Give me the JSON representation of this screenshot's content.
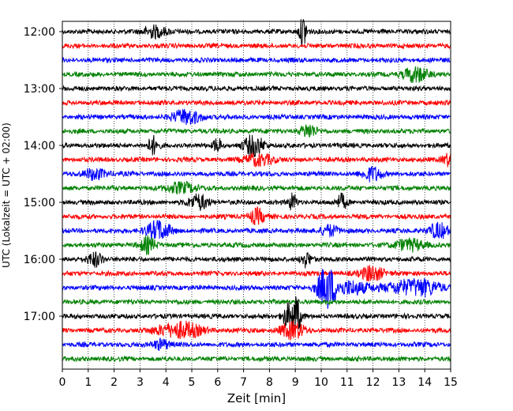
{
  "chart_data": {
    "type": "line",
    "title": "",
    "xlabel": "Zeit  [min]",
    "ylabel": "UTC (Lokalzeit = UTC + 02:00)",
    "xlim": [
      0,
      15
    ],
    "x_ticks": [
      "0",
      "1",
      "2",
      "3",
      "4",
      "5",
      "6",
      "7",
      "8",
      "9",
      "10",
      "11",
      "12",
      "13",
      "14",
      "15"
    ],
    "y_ticks": [
      "12:00",
      "13:00",
      "14:00",
      "15:00",
      "16:00",
      "17:00"
    ],
    "grid": {
      "vertical": "dotted",
      "horizontal": false
    },
    "trace_interval_min": 15,
    "start_time": "12:00",
    "color_cycle": [
      "#000000",
      "#ff0000",
      "#0000ff",
      "#008000"
    ],
    "series": [
      {
        "start": "12:00",
        "color": "#000000",
        "events": [
          {
            "t": 3.6,
            "amp": 1.3,
            "dur": 0.4
          },
          {
            "t": 9.3,
            "amp": 3.0,
            "dur": 0.15
          }
        ]
      },
      {
        "start": "12:15",
        "color": "#ff0000",
        "events": []
      },
      {
        "start": "12:30",
        "color": "#0000ff",
        "events": []
      },
      {
        "start": "12:45",
        "color": "#008000",
        "events": [
          {
            "t": 13.6,
            "amp": 1.3,
            "dur": 0.5
          }
        ]
      },
      {
        "start": "13:00",
        "color": "#000000",
        "events": []
      },
      {
        "start": "13:15",
        "color": "#ff0000",
        "events": []
      },
      {
        "start": "13:30",
        "color": "#0000ff",
        "events": [
          {
            "t": 4.8,
            "amp": 1.2,
            "dur": 0.6
          }
        ]
      },
      {
        "start": "13:45",
        "color": "#008000",
        "events": [
          {
            "t": 9.5,
            "amp": 1.2,
            "dur": 0.3
          }
        ]
      },
      {
        "start": "14:00",
        "color": "#000000",
        "events": [
          {
            "t": 3.5,
            "amp": 1.4,
            "dur": 0.2
          },
          {
            "t": 6.0,
            "amp": 1.4,
            "dur": 0.15
          },
          {
            "t": 7.4,
            "amp": 1.6,
            "dur": 0.4
          }
        ]
      },
      {
        "start": "14:15",
        "color": "#ff0000",
        "events": [
          {
            "t": 7.6,
            "amp": 1.3,
            "dur": 0.5
          },
          {
            "t": 14.9,
            "amp": 1.3,
            "dur": 0.2
          }
        ]
      },
      {
        "start": "14:30",
        "color": "#0000ff",
        "events": [
          {
            "t": 1.3,
            "amp": 1.2,
            "dur": 0.4
          },
          {
            "t": 12.0,
            "amp": 1.2,
            "dur": 0.4
          }
        ]
      },
      {
        "start": "14:45",
        "color": "#008000",
        "events": [
          {
            "t": 4.6,
            "amp": 1.2,
            "dur": 0.5
          }
        ]
      },
      {
        "start": "15:00",
        "color": "#000000",
        "events": [
          {
            "t": 5.3,
            "amp": 1.3,
            "dur": 0.4
          },
          {
            "t": 8.9,
            "amp": 1.4,
            "dur": 0.15
          },
          {
            "t": 10.8,
            "amp": 1.3,
            "dur": 0.2
          }
        ]
      },
      {
        "start": "15:15",
        "color": "#ff0000",
        "events": [
          {
            "t": 7.5,
            "amp": 1.4,
            "dur": 0.3
          }
        ]
      },
      {
        "start": "15:30",
        "color": "#0000ff",
        "events": [
          {
            "t": 3.7,
            "amp": 1.5,
            "dur": 0.5
          },
          {
            "t": 10.3,
            "amp": 1.3,
            "dur": 0.3
          },
          {
            "t": 14.5,
            "amp": 1.3,
            "dur": 0.4
          }
        ]
      },
      {
        "start": "15:45",
        "color": "#008000",
        "events": [
          {
            "t": 3.3,
            "amp": 1.3,
            "dur": 0.3
          },
          {
            "t": 13.4,
            "amp": 1.3,
            "dur": 0.5
          }
        ]
      },
      {
        "start": "16:00",
        "color": "#000000",
        "events": [
          {
            "t": 1.3,
            "amp": 1.3,
            "dur": 0.3
          },
          {
            "t": 9.4,
            "amp": 1.4,
            "dur": 0.2
          }
        ]
      },
      {
        "start": "16:15",
        "color": "#ff0000",
        "events": [
          {
            "t": 12.0,
            "amp": 1.6,
            "dur": 0.4
          }
        ]
      },
      {
        "start": "16:30",
        "color": "#0000ff",
        "events": [
          {
            "t": 10.15,
            "amp": 3.0,
            "dur": 0.35
          },
          {
            "t": 11.3,
            "amp": 1.3,
            "dur": 0.6
          },
          {
            "t": 13.6,
            "amp": 1.6,
            "dur": 0.9
          }
        ]
      },
      {
        "start": "16:45",
        "color": "#008000",
        "events": []
      },
      {
        "start": "17:00",
        "color": "#000000",
        "events": [
          {
            "t": 8.6,
            "amp": 1.6,
            "dur": 0.15
          },
          {
            "t": 9.0,
            "amp": 3.2,
            "dur": 0.2
          }
        ]
      },
      {
        "start": "17:15",
        "color": "#ff0000",
        "events": [
          {
            "t": 4.5,
            "amp": 1.5,
            "dur": 0.8
          },
          {
            "t": 8.9,
            "amp": 1.3,
            "dur": 0.5
          }
        ]
      },
      {
        "start": "17:30",
        "color": "#0000ff",
        "events": [
          {
            "t": 3.8,
            "amp": 1.2,
            "dur": 0.3
          }
        ]
      },
      {
        "start": "17:45",
        "color": "#008000",
        "events": []
      }
    ]
  }
}
